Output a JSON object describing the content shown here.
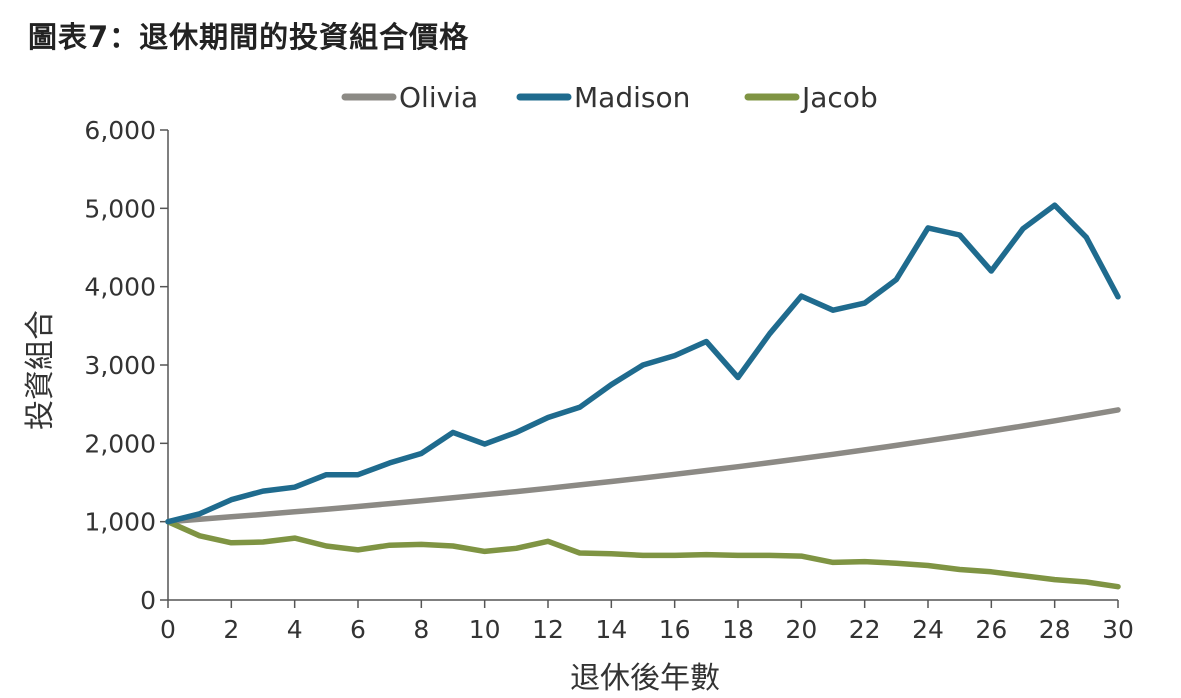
{
  "chart_data": {
    "type": "line",
    "title": "圖表7：退休期間的投資組合價格",
    "xlabel": "退休後年數",
    "ylabel": "投資組合",
    "xlim": [
      0,
      30
    ],
    "ylim": [
      0,
      6000
    ],
    "x_ticks": [
      "0",
      "2",
      "4",
      "6",
      "8",
      "10",
      "12",
      "14",
      "16",
      "18",
      "20",
      "22",
      "24",
      "26",
      "28",
      "30"
    ],
    "y_ticks": [
      "0",
      "1,000",
      "2,000",
      "3,000",
      "4,000",
      "5,000",
      "6,000"
    ],
    "legend_position": "top-center",
    "grid": false,
    "x": [
      0,
      1,
      2,
      3,
      4,
      5,
      6,
      7,
      8,
      9,
      10,
      11,
      12,
      13,
      14,
      15,
      16,
      17,
      18,
      19,
      20,
      21,
      22,
      23,
      24,
      25,
      26,
      27,
      28,
      29,
      30
    ],
    "series": [
      {
        "name": "Olivia",
        "color": "#8c8a85",
        "values": [
          1000,
          1031,
          1062,
          1093,
          1126,
          1159,
          1194,
          1230,
          1267,
          1305,
          1344,
          1384,
          1426,
          1469,
          1513,
          1558,
          1605,
          1653,
          1702,
          1754,
          1806,
          1860,
          1916,
          1974,
          2033,
          2094,
          2157,
          2221,
          2288,
          2357,
          2427
        ]
      },
      {
        "name": "Madison",
        "color": "#1f6b8e",
        "values": [
          1000,
          1100,
          1280,
          1390,
          1440,
          1600,
          1600,
          1750,
          1870,
          2140,
          1990,
          2140,
          2330,
          2460,
          2750,
          3000,
          3120,
          3300,
          2840,
          3400,
          3880,
          3700,
          3790,
          4090,
          4750,
          4660,
          4200,
          4740,
          5040,
          4630,
          3870
        ]
      },
      {
        "name": "Jacob",
        "color": "#7f9443",
        "values": [
          1000,
          820,
          730,
          740,
          790,
          690,
          640,
          700,
          710,
          690,
          620,
          660,
          750,
          600,
          590,
          570,
          570,
          580,
          570,
          570,
          560,
          480,
          490,
          470,
          440,
          390,
          360,
          310,
          260,
          230,
          170
        ]
      }
    ]
  }
}
